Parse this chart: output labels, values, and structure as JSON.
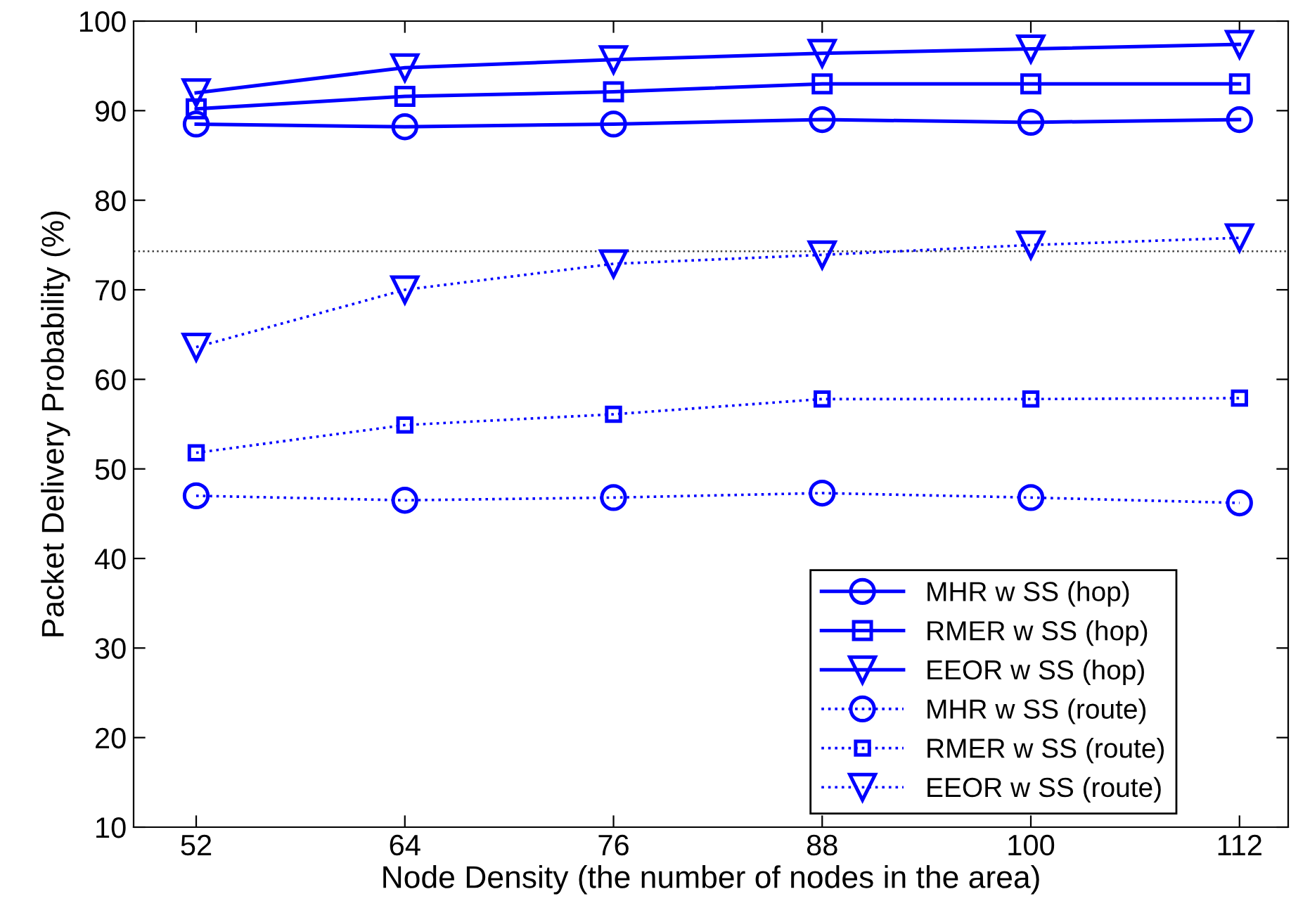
{
  "chart_data": {
    "type": "line",
    "xlabel": "Node Density (the number of nodes in the area)",
    "ylabel": "Packet Delivery Probability (%)",
    "x": [
      52,
      64,
      76,
      88,
      100,
      112
    ],
    "series": [
      {
        "name": "MHR w SS (hop)",
        "color": "#0000ff",
        "marker": "circle",
        "line_style": "solid",
        "values": [
          88.5,
          88.2,
          88.5,
          89.0,
          88.7,
          89.0
        ]
      },
      {
        "name": "RMER w SS (hop)",
        "color": "#0000ff",
        "marker": "square",
        "line_style": "solid",
        "values": [
          90.2,
          91.6,
          92.1,
          93.0,
          93.0,
          93.0
        ]
      },
      {
        "name": "EEOR w SS (hop)",
        "color": "#0000ff",
        "marker": "triangle",
        "line_style": "solid",
        "values": [
          92.0,
          94.8,
          95.7,
          96.4,
          96.9,
          97.4
        ]
      },
      {
        "name": "MHR w SS (route)",
        "color": "#0000ff",
        "marker": "circle",
        "line_style": "dotted",
        "values": [
          47.0,
          46.5,
          46.8,
          47.3,
          46.8,
          46.2
        ]
      },
      {
        "name": "RMER w SS (route)",
        "color": "#0000ff",
        "marker": "square",
        "line_style": "dotted",
        "values": [
          51.8,
          54.9,
          56.1,
          57.8,
          57.8,
          57.9
        ]
      },
      {
        "name": "EEOR w SS (route)",
        "color": "#0000ff",
        "marker": "triangle",
        "line_style": "dotted",
        "values": [
          63.6,
          70.0,
          72.9,
          73.9,
          75.0,
          75.8
        ]
      }
    ],
    "ref_lines": [
      {
        "axis": "y",
        "value": 74.3,
        "color": "#404040",
        "line_style": "dotted"
      }
    ],
    "xlim": [
      48.4,
      114.8
    ],
    "xticks": [
      52,
      64,
      76,
      88,
      100,
      112
    ],
    "ylim": [
      10,
      100
    ],
    "yticks": [
      10,
      20,
      30,
      40,
      50,
      60,
      70,
      80,
      90,
      100
    ],
    "grid": false,
    "legend": "bottom right"
  }
}
